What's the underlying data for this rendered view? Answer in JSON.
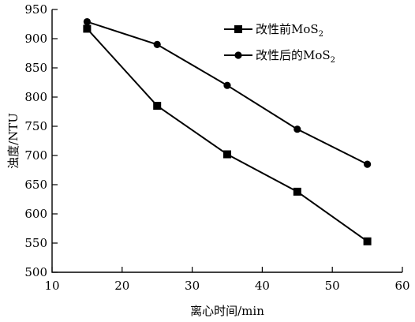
{
  "chart_data": {
    "type": "line",
    "xlabel": "离心时间/min",
    "ylabel": "浊度/NTU",
    "xlim": [
      10,
      60
    ],
    "ylim": [
      500,
      950
    ],
    "xticks": [
      10,
      20,
      30,
      40,
      50,
      60
    ],
    "yticks": [
      500,
      550,
      600,
      650,
      700,
      750,
      800,
      850,
      900,
      950
    ],
    "grid": false,
    "legend_position": "top-right",
    "series": [
      {
        "name": "改性前MoS2",
        "name_base": "改性前MoS",
        "name_sub": "2",
        "marker": "square",
        "color": "#000000",
        "x": [
          15,
          25,
          35,
          45,
          55
        ],
        "y": [
          917,
          785,
          702,
          638,
          553
        ]
      },
      {
        "name": "改性后的MoS2",
        "name_base": "改性后的MoS",
        "name_sub": "2",
        "marker": "circle",
        "color": "#000000",
        "x": [
          15,
          25,
          35,
          45,
          55
        ],
        "y": [
          929,
          890,
          820,
          745,
          685
        ]
      }
    ]
  }
}
